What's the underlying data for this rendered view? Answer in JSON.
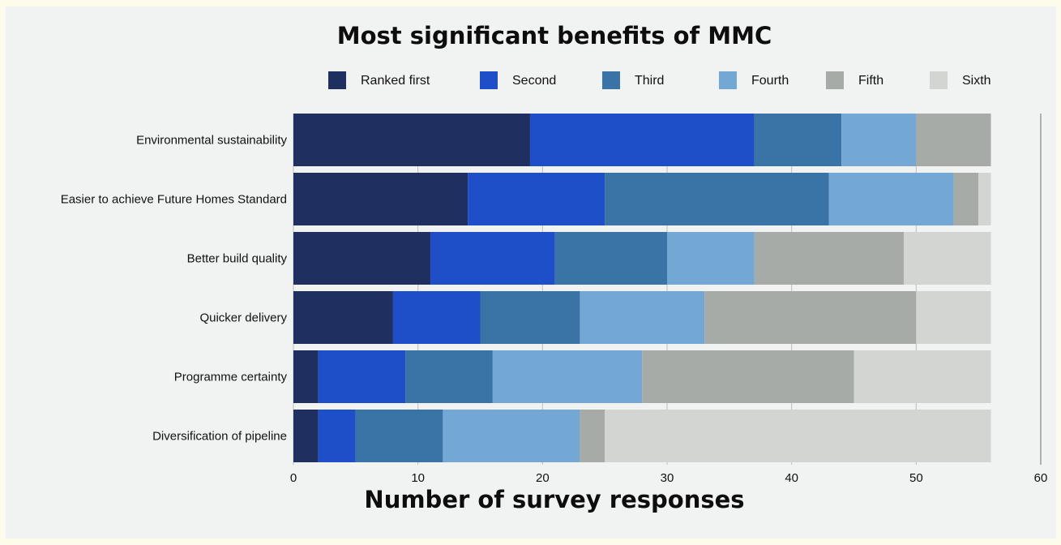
{
  "chart_data": {
    "type": "bar",
    "orientation": "horizontal",
    "stacked": true,
    "title": "Most significant benefits of MMC",
    "xlabel": "Number of survey responses",
    "ylabel": "",
    "xlim": [
      0,
      60
    ],
    "xticks": [
      0,
      10,
      20,
      30,
      40,
      50,
      60
    ],
    "grid": true,
    "legend_position": "top",
    "categories": [
      "Environmental sustainability",
      "Easier to achieve Future Homes Standard",
      "Better build quality",
      "Quicker delivery",
      "Programme certainty",
      "Diversification of pipeline"
    ],
    "series": [
      {
        "name": "Ranked first",
        "color": "#1f2f5f",
        "values": [
          19,
          14,
          11,
          8,
          2,
          2
        ]
      },
      {
        "name": "Second",
        "color": "#1f4fc8",
        "values": [
          18,
          11,
          10,
          7,
          7,
          3
        ]
      },
      {
        "name": "Third",
        "color": "#3a73a6",
        "values": [
          7,
          18,
          9,
          8,
          7,
          7
        ]
      },
      {
        "name": "Fourth",
        "color": "#74a8d4",
        "values": [
          6,
          10,
          7,
          10,
          12,
          11
        ]
      },
      {
        "name": "Fifth",
        "color": "#a7aba7",
        "values": [
          6,
          2,
          12,
          17,
          17,
          2
        ]
      },
      {
        "name": "Sixth",
        "color": "#d3d5d2",
        "values": [
          0,
          1,
          7,
          6,
          11,
          31
        ]
      }
    ]
  }
}
